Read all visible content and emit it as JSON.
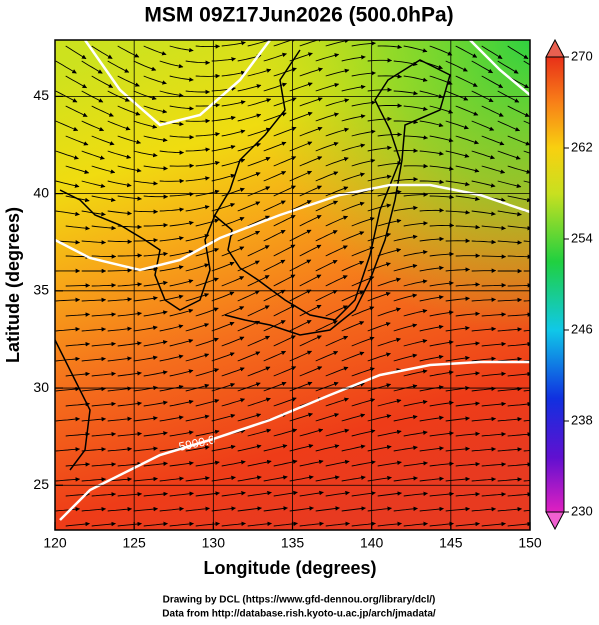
{
  "chart_data": {
    "type": "map",
    "title": "MSM 09Z17Jun2026 (500.0hPa)",
    "x_label": "Longitude (degrees)",
    "y_label": "Latitude  (degrees)",
    "xlim": [
      120,
      150
    ],
    "xticks": [
      120,
      125,
      130,
      135,
      140,
      145,
      150
    ],
    "ylim": [
      22.7,
      47.9
    ],
    "yticks": [
      25,
      30,
      35,
      40,
      45
    ],
    "grid": true,
    "colorbar": {
      "lim": [
        230,
        270
      ],
      "ticks": [
        230,
        238,
        246,
        254,
        262,
        270
      ]
    },
    "contour_labels": [
      "5900.0"
    ],
    "footer": [
      "Drawing by DCL (https://www.gfd-dennou.org/library/dcl/)",
      "Data from http://database.rish.kyoto-u.ac.jp/arch/jmadata/"
    ]
  }
}
